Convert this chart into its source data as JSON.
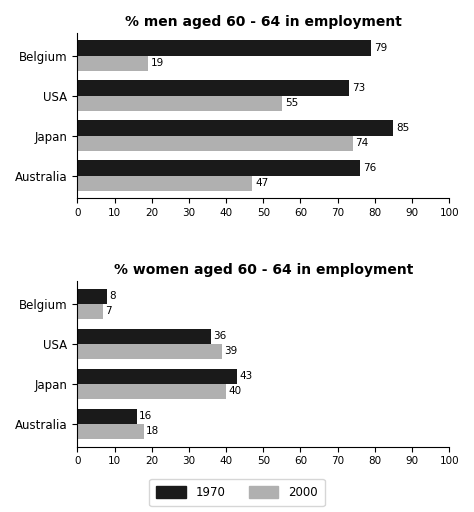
{
  "men_title": "% men aged 60 - 64 in employment",
  "women_title": "% women aged 60 - 64 in employment",
  "countries": [
    "Belgium",
    "USA",
    "Japan",
    "Australia"
  ],
  "men_1970": [
    79,
    73,
    85,
    76
  ],
  "men_2000": [
    19,
    55,
    74,
    47
  ],
  "women_1970": [
    8,
    36,
    43,
    16
  ],
  "women_2000": [
    7,
    39,
    40,
    18
  ],
  "color_1970": "#1a1a1a",
  "color_2000": "#b0b0b0",
  "xlim": [
    0,
    100
  ],
  "xticks": [
    0,
    10,
    20,
    30,
    40,
    50,
    60,
    70,
    80,
    90,
    100
  ],
  "bar_height": 0.38,
  "legend_1970": "1970",
  "legend_2000": "2000",
  "background_color": "#ffffff",
  "title_fontsize": 10,
  "label_fontsize": 8.5,
  "tick_fontsize": 7.5,
  "annotation_fontsize": 7.5
}
